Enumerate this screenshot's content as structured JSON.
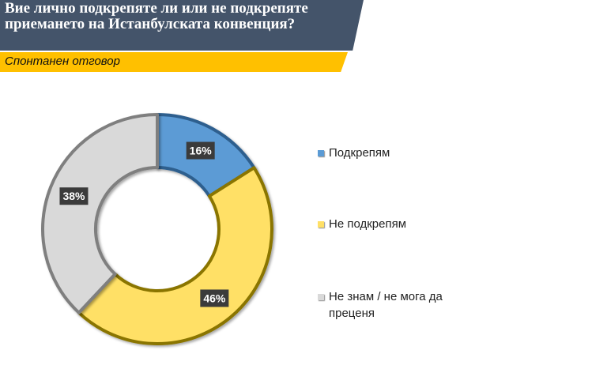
{
  "title": "Вие лично подкрепяте ли или не подкрепяте приемането на Истанбулската конвенция?",
  "subtitle": "Спонтанен отговор",
  "chart_data": {
    "type": "pie",
    "donut": true,
    "legend_position": "right",
    "series": [
      {
        "name": "Подкрепям",
        "value": 16,
        "label": "16%",
        "color": "#5b9bd5"
      },
      {
        "name": "Не подкрепям",
        "value": 46,
        "label": "46%",
        "color": "#ffe066"
      },
      {
        "name": "Не знам / не мога да преценя",
        "value": 38,
        "label": "38%",
        "color": "#d9d9d9"
      }
    ]
  }
}
